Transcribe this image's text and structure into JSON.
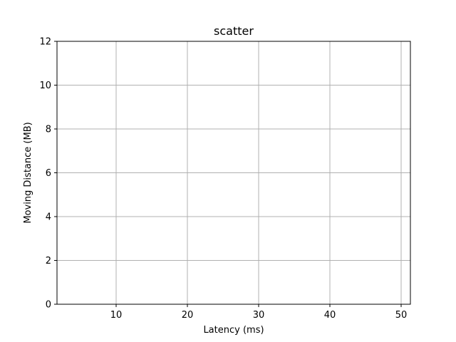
{
  "chart_data": {
    "type": "scatter",
    "title": "scatter",
    "xlabel": "Latency (ms)",
    "ylabel": "Moving Distance (MB)",
    "xlim": [
      1.7,
      51.3
    ],
    "ylim": [
      0,
      12
    ],
    "x_ticks": [
      10,
      20,
      30,
      40,
      50
    ],
    "y_ticks": [
      0,
      2,
      4,
      6,
      8,
      10,
      12
    ],
    "grid": true,
    "series": [
      {
        "x": [],
        "y": []
      }
    ],
    "colors": {
      "grid": "#b0b0b0",
      "axes": "#000000",
      "background": "#ffffff"
    }
  }
}
